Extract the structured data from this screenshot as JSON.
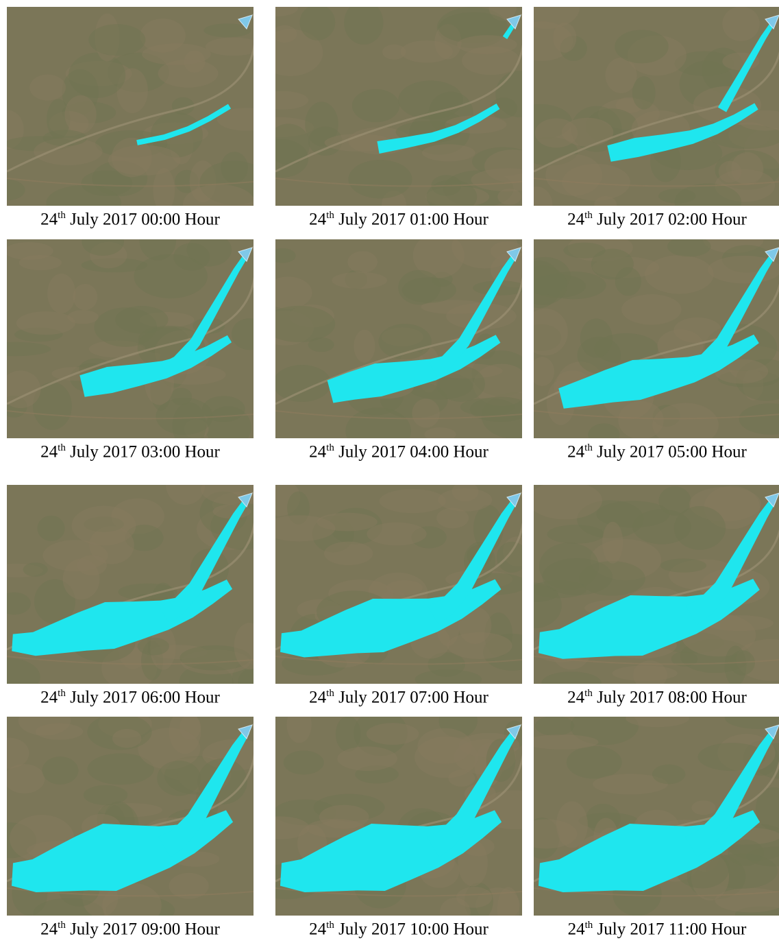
{
  "panels": [
    {
      "day": "24",
      "suffix": "th",
      "rest": "July 2017 00:00 Hour"
    },
    {
      "day": "24",
      "suffix": "th",
      "rest": "July 2017 01:00 Hour"
    },
    {
      "day": "24",
      "suffix": "th",
      "rest": "July 2017 02:00 Hour"
    },
    {
      "day": "24",
      "suffix": "th",
      "rest": "July 2017 03:00 Hour"
    },
    {
      "day": "24",
      "suffix": "th",
      "rest": "July 2017 04:00 Hour"
    },
    {
      "day": "24",
      "suffix": "th",
      "rest": "July 2017 05:00 Hour"
    },
    {
      "day": "24",
      "suffix": "th",
      "rest": "July 2017 06:00 Hour"
    },
    {
      "day": "24",
      "suffix": "th",
      "rest": "July 2017 07:00 Hour"
    },
    {
      "day": "24",
      "suffix": "th",
      "rest": "July 2017 08:00 Hour"
    },
    {
      "day": "24",
      "suffix": "th",
      "rest": "July 2017 09:00 Hour"
    },
    {
      "day": "24",
      "suffix": "th",
      "rest": "July 2017 10:00 Hour"
    },
    {
      "day": "24",
      "suffix": "th",
      "rest": "July 2017 11:00 Hour"
    }
  ]
}
